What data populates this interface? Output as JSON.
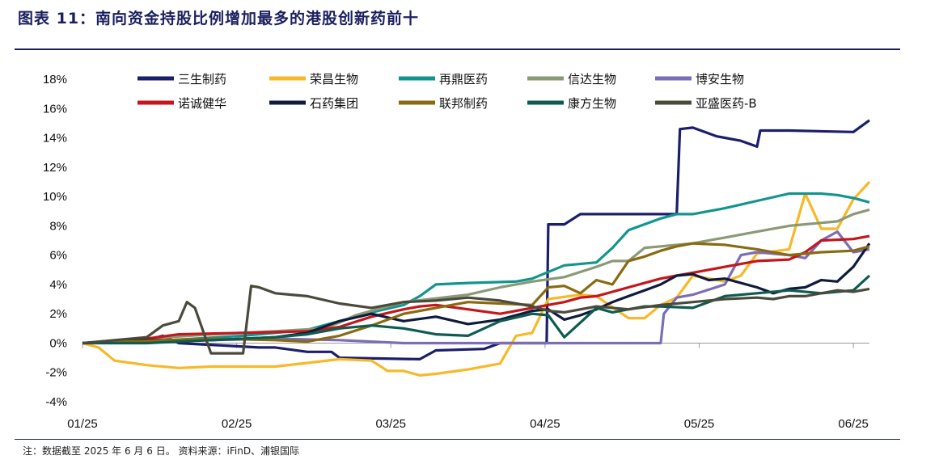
{
  "title": "图表 11：南向资金持股比例增加最多的港股创新药前十",
  "note": "注：数据截至 2025 年 6 月 6 日。 资料来源：iFinD、浦银国际",
  "chart_data": {
    "type": "line",
    "ylim": [
      -4,
      18
    ],
    "ytick_labels": [
      "18%",
      "16%",
      "14%",
      "12%",
      "10%",
      "8%",
      "6%",
      "4%",
      "2%",
      "0%",
      "-2%",
      "-4%"
    ],
    "x_ticks": [
      "01/25",
      "02/25",
      "03/25",
      "04/25",
      "05/25",
      "06/25"
    ],
    "grid": false,
    "legend_position": "top",
    "series": [
      {
        "name": "三生制药",
        "color": "#1b1f6b",
        "x": [
          0,
          4,
          5,
          6,
          11,
          12,
          14,
          15.5,
          16,
          21,
          22,
          25,
          26,
          28.9,
          29.0,
          30,
          31,
          37,
          37.2,
          38,
          39.5,
          40,
          41,
          42,
          42.2,
          44,
          48,
          49
        ],
        "y": [
          0,
          0.2,
          0.5,
          0,
          -0.3,
          -0.3,
          -0.6,
          -0.6,
          -1.0,
          -1.1,
          -0.5,
          -0.4,
          0,
          0,
          8.1,
          8.1,
          8.8,
          8.8,
          14.6,
          14.7,
          14.1,
          14.0,
          13.8,
          13.4,
          14.5,
          14.5,
          14.4,
          15.2
        ]
      },
      {
        "name": "荣昌生物",
        "color": "#f7b829",
        "x": [
          0,
          1,
          2,
          4,
          6,
          8,
          12,
          16,
          18,
          19,
          20,
          21,
          22,
          24,
          26,
          27,
          28,
          29,
          31,
          32,
          34,
          35,
          36,
          37,
          38,
          40,
          41,
          42,
          44,
          45,
          46,
          47,
          48,
          49
        ],
        "y": [
          0,
          -0.3,
          -1.2,
          -1.5,
          -1.7,
          -1.6,
          -1.6,
          -1.1,
          -1.2,
          -1.9,
          -1.9,
          -2.2,
          -2.1,
          -1.8,
          -1.4,
          0.5,
          0.7,
          3.0,
          3.3,
          3.2,
          1.7,
          1.7,
          2.6,
          3.1,
          4.6,
          4.2,
          4.6,
          6.1,
          6.4,
          10.2,
          7.8,
          7.8,
          9.8,
          11.0
        ]
      },
      {
        "name": "再鼎医药",
        "color": "#13958f",
        "x": [
          0,
          4,
          10,
          14,
          16,
          18,
          20,
          21,
          22,
          24,
          27,
          28,
          30,
          32,
          33,
          34,
          36,
          37,
          38,
          40,
          42,
          44,
          46,
          47,
          48,
          49
        ],
        "y": [
          0,
          0.1,
          0.5,
          0.9,
          1.5,
          2.1,
          2.6,
          3.2,
          4.0,
          4.1,
          4.2,
          4.4,
          5.3,
          5.5,
          6.5,
          7.7,
          8.5,
          8.8,
          8.8,
          9.2,
          9.7,
          10.2,
          10.2,
          10.1,
          9.9,
          9.6
        ]
      },
      {
        "name": "信达生物",
        "color": "#8a9a76",
        "x": [
          0,
          4,
          8,
          12,
          15,
          16,
          17,
          18,
          20,
          24,
          26,
          28,
          30,
          32,
          33,
          34,
          35,
          36,
          38,
          40,
          42,
          44,
          46,
          47,
          48,
          49
        ],
        "y": [
          0,
          0.3,
          0.6,
          0.8,
          1.0,
          1.4,
          1.9,
          2.2,
          2.8,
          3.3,
          3.8,
          4.2,
          4.5,
          5.2,
          5.6,
          5.6,
          6.5,
          6.6,
          6.8,
          7.2,
          7.6,
          8.0,
          8.2,
          8.3,
          8.8,
          9.1
        ]
      },
      {
        "name": "博安生物",
        "color": "#7b6db8",
        "x": [
          0,
          4,
          8,
          12,
          16,
          20,
          24,
          28,
          30,
          33,
          36,
          36.2,
          37,
          38,
          40,
          41,
          42,
          44,
          45,
          46,
          47,
          48,
          49
        ],
        "y": [
          0,
          0.1,
          0.2,
          0.3,
          0.2,
          0,
          0,
          0,
          0,
          0,
          0,
          2.0,
          3.1,
          3.3,
          4.0,
          6.0,
          6.2,
          6.0,
          5.8,
          7.0,
          7.6,
          6.2,
          6.4
        ]
      },
      {
        "name": "诺诚健华",
        "color": "#c4161c",
        "x": [
          0,
          4,
          6,
          10,
          14,
          16,
          18,
          20,
          21,
          22,
          24,
          26,
          28,
          29,
          30,
          31,
          32,
          33,
          34,
          35,
          36,
          37,
          38,
          40,
          42,
          44,
          45,
          46,
          48,
          49
        ],
        "y": [
          0,
          0.3,
          0.6,
          0.7,
          0.8,
          1.1,
          1.8,
          2.3,
          2.5,
          2.6,
          2.3,
          2.0,
          2.4,
          2.6,
          2.8,
          3.1,
          3.2,
          3.5,
          3.8,
          4.1,
          4.4,
          4.6,
          4.8,
          5.2,
          5.6,
          5.7,
          6.2,
          7.0,
          7.1,
          7.3
        ]
      },
      {
        "name": "石药集团",
        "color": "#0f1b3c",
        "x": [
          0,
          4,
          8,
          12,
          14,
          16,
          18,
          20,
          22,
          24,
          26,
          28,
          29,
          30,
          31,
          32,
          33,
          34,
          35,
          36,
          37,
          38,
          39,
          40,
          42,
          43,
          44,
          45,
          46,
          47,
          48,
          49
        ],
        "y": [
          0,
          0.2,
          0.2,
          0.4,
          0.7,
          1.5,
          2.0,
          1.5,
          1.8,
          1.3,
          1.6,
          2.2,
          2.3,
          1.6,
          1.9,
          2.3,
          2.8,
          3.2,
          3.6,
          4.0,
          4.6,
          4.7,
          4.3,
          4.4,
          3.8,
          3.4,
          3.7,
          3.8,
          4.3,
          4.2,
          5.2,
          6.8
        ]
      },
      {
        "name": "联邦制药",
        "color": "#8a6a11",
        "x": [
          0,
          8,
          12,
          14,
          16,
          18,
          20,
          24,
          26,
          28,
          29,
          30,
          31,
          32,
          33,
          34,
          35,
          36,
          37,
          38,
          40,
          42,
          44,
          46,
          48,
          49
        ],
        "y": [
          0,
          0.3,
          0.2,
          0.1,
          0.5,
          1.2,
          2.0,
          2.8,
          2.7,
          2.6,
          3.8,
          3.9,
          3.4,
          4.3,
          4.0,
          5.6,
          5.9,
          6.3,
          6.6,
          6.8,
          6.7,
          6.4,
          6.0,
          6.2,
          6.3,
          6.6
        ]
      },
      {
        "name": "康方生物",
        "color": "#0e5b50",
        "x": [
          0,
          4,
          8,
          12,
          14,
          16,
          18,
          20,
          22,
          24,
          26,
          28,
          29,
          30,
          31,
          32,
          33,
          34,
          35,
          36,
          38,
          40,
          42,
          44,
          46,
          47,
          48,
          49
        ],
        "y": [
          0,
          0,
          0.2,
          0.4,
          0.6,
          1.0,
          1.2,
          1.0,
          0.6,
          0.5,
          1.5,
          2.0,
          1.9,
          0.4,
          1.4,
          2.4,
          2.1,
          2.3,
          2.5,
          2.5,
          2.4,
          3.2,
          3.4,
          3.6,
          3.4,
          3.5,
          3.6,
          4.6
        ]
      },
      {
        "name": "亚盛医药-B",
        "color": "#4a4a3c",
        "x": [
          0,
          2,
          4,
          5,
          6,
          6.5,
          7,
          8,
          9,
          10,
          10.5,
          11,
          12,
          13,
          14,
          16,
          18,
          20,
          22,
          24,
          26,
          28,
          29,
          30,
          32,
          34,
          36,
          38,
          40,
          42,
          43,
          44,
          45,
          46,
          47,
          48,
          49
        ],
        "y": [
          0,
          0.2,
          0.4,
          1.2,
          1.5,
          2.8,
          2.4,
          -0.7,
          -0.7,
          -0.7,
          3.9,
          3.8,
          3.4,
          3.3,
          3.2,
          2.7,
          2.4,
          2.8,
          2.9,
          3.1,
          2.9,
          2.5,
          2.2,
          2.1,
          2.5,
          2.3,
          2.6,
          2.8,
          3.0,
          3.1,
          3.0,
          3.2,
          3.2,
          3.4,
          3.6,
          3.5,
          3.7
        ]
      }
    ]
  }
}
